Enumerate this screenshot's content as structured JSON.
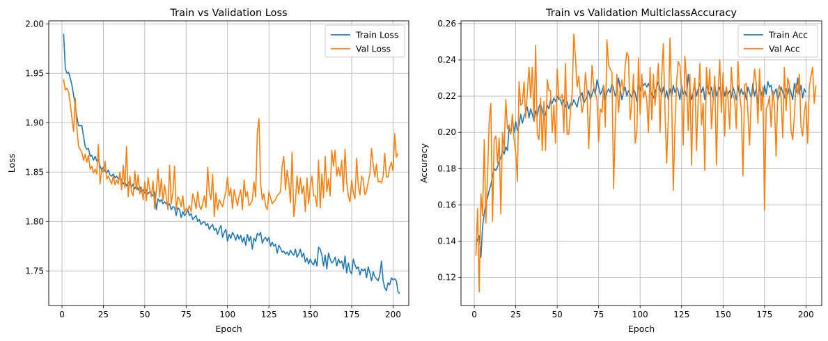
{
  "chart_data": [
    {
      "type": "line",
      "title": "Train vs Validation Loss",
      "xlabel": "Epoch",
      "ylabel": "Loss",
      "xlim": [
        -8,
        209.5
      ],
      "ylim": [
        1.715,
        2.003
      ],
      "xticks": [
        0,
        25,
        50,
        75,
        100,
        125,
        150,
        175,
        200
      ],
      "yticks": [
        1.75,
        1.8,
        1.85,
        1.9,
        1.95,
        2.0
      ],
      "ytick_labels": [
        "1.75",
        "1.80",
        "1.85",
        "1.90",
        "1.95",
        "2.00"
      ],
      "grid": true,
      "legend": "top-right",
      "x": {
        "start": 1,
        "end": 200,
        "step": 1
      },
      "series": [
        {
          "name": "Train Loss",
          "color": "#1f77b4",
          "values": [
            1.99,
            1.955,
            1.95,
            1.951,
            1.945,
            1.938,
            1.928,
            1.918,
            1.906,
            1.897,
            1.897,
            1.897,
            1.886,
            1.876,
            1.873,
            1.874,
            1.866,
            1.867,
            1.862,
            1.866,
            1.861,
            1.863,
            1.856,
            1.852,
            1.855,
            1.851,
            1.849,
            1.852,
            1.847,
            1.846,
            1.848,
            1.844,
            1.846,
            1.843,
            1.845,
            1.842,
            1.838,
            1.84,
            1.836,
            1.84,
            1.838,
            1.835,
            1.838,
            1.833,
            1.836,
            1.832,
            1.835,
            1.83,
            1.832,
            1.829,
            1.832,
            1.828,
            1.83,
            1.828,
            1.826,
            1.83,
            1.812,
            1.823,
            1.82,
            1.822,
            1.818,
            1.82,
            1.818,
            1.816,
            1.818,
            1.812,
            1.815,
            1.814,
            1.806,
            1.814,
            1.812,
            1.804,
            1.81,
            1.806,
            1.808,
            1.812,
            1.806,
            1.808,
            1.802,
            1.804,
            1.806,
            1.8,
            1.802,
            1.797,
            1.799,
            1.8,
            1.796,
            1.798,
            1.792,
            1.795,
            1.797,
            1.791,
            1.793,
            1.787,
            1.792,
            1.796,
            1.784,
            1.789,
            1.792,
            1.78,
            1.787,
            1.783,
            1.789,
            1.786,
            1.781,
            1.787,
            1.782,
            1.786,
            1.779,
            1.784,
            1.776,
            1.787,
            1.78,
            1.785,
            1.772,
            1.783,
            1.78,
            1.788,
            1.786,
            1.789,
            1.778,
            1.782,
            1.784,
            1.78,
            1.784,
            1.775,
            1.779,
            1.775,
            1.777,
            1.768,
            1.776,
            1.773,
            1.769,
            1.77,
            1.767,
            1.769,
            1.766,
            1.771,
            1.768,
            1.766,
            1.772,
            1.764,
            1.767,
            1.772,
            1.764,
            1.768,
            1.759,
            1.763,
            1.757,
            1.762,
            1.758,
            1.756,
            1.762,
            1.755,
            1.774,
            1.772,
            1.766,
            1.755,
            1.766,
            1.752,
            1.768,
            1.762,
            1.758,
            1.76,
            1.764,
            1.755,
            1.762,
            1.758,
            1.76,
            1.752,
            1.765,
            1.748,
            1.758,
            1.75,
            1.747,
            1.762,
            1.756,
            1.752,
            1.754,
            1.746,
            1.752,
            1.75,
            1.752,
            1.743,
            1.754,
            1.748,
            1.74,
            1.749,
            1.744,
            1.742,
            1.74,
            1.746,
            1.76,
            1.74,
            1.733,
            1.73,
            1.738,
            1.736,
            1.743,
            1.741,
            1.742,
            1.74,
            1.729,
            1.727
          ]
        },
        {
          "name": "Val Loss",
          "color": "#ff7f0e",
          "values": [
            1.944,
            1.933,
            1.935,
            1.931,
            1.919,
            1.905,
            1.891,
            1.925,
            1.895,
            1.876,
            1.873,
            1.87,
            1.862,
            1.868,
            1.86,
            1.867,
            1.853,
            1.856,
            1.849,
            1.853,
            1.848,
            1.878,
            1.838,
            1.852,
            1.85,
            1.861,
            1.843,
            1.846,
            1.842,
            1.838,
            1.846,
            1.837,
            1.842,
            1.838,
            1.85,
            1.832,
            1.857,
            1.834,
            1.876,
            1.825,
            1.846,
            1.83,
            1.826,
            1.851,
            1.832,
            1.847,
            1.828,
            1.835,
            1.822,
            1.84,
            1.821,
            1.844,
            1.833,
            1.825,
            1.841,
            1.813,
            1.831,
            1.853,
            1.825,
            1.843,
            1.821,
            1.837,
            1.825,
            1.812,
            1.857,
            1.818,
            1.83,
            1.856,
            1.812,
            1.825,
            1.822,
            1.815,
            1.826,
            1.809,
            1.813,
            1.812,
            1.816,
            1.81,
            1.828,
            1.822,
            1.813,
            1.83,
            1.816,
            1.812,
            1.818,
            1.826,
            1.814,
            1.855,
            1.83,
            1.822,
            1.848,
            1.805,
            1.829,
            1.812,
            1.822,
            1.818,
            1.815,
            1.823,
            1.83,
            1.845,
            1.826,
            1.834,
            1.813,
            1.832,
            1.824,
            1.816,
            1.826,
            1.832,
            1.812,
            1.842,
            1.825,
            1.83,
            1.816,
            1.818,
            1.822,
            1.84,
            1.825,
            1.89,
            1.904,
            1.838,
            1.822,
            1.828,
            1.816,
            1.812,
            1.83,
            1.824,
            1.818,
            1.82,
            1.822,
            1.826,
            1.828,
            1.83,
            1.856,
            1.866,
            1.832,
            1.852,
            1.84,
            1.819,
            1.87,
            1.805,
            1.82,
            1.846,
            1.828,
            1.844,
            1.828,
            1.836,
            1.81,
            1.844,
            1.818,
            1.836,
            1.846,
            1.826,
            1.826,
            1.815,
            1.862,
            1.814,
            1.848,
            1.824,
            1.866,
            1.83,
            1.843,
            1.826,
            1.872,
            1.856,
            1.872,
            1.846,
            1.855,
            1.846,
            1.862,
            1.83,
            1.873,
            1.84,
            1.826,
            1.82,
            1.842,
            1.829,
            1.823,
            1.864,
            1.836,
            1.827,
            1.846,
            1.842,
            1.827,
            1.831,
            1.84,
            1.848,
            1.874,
            1.858,
            1.845,
            1.858,
            1.84,
            1.841,
            1.839,
            1.846,
            1.869,
            1.845,
            1.845,
            1.855,
            1.86,
            1.851,
            1.889,
            1.865,
            1.869
          ]
        }
      ]
    },
    {
      "type": "line",
      "title": "Train vs Validation MulticlassAccuracy",
      "xlabel": "Epoch",
      "ylabel": "Accuracy",
      "xlim": [
        -8,
        209.5
      ],
      "ylim": [
        0.1045,
        0.2615
      ],
      "xticks": [
        0,
        25,
        50,
        75,
        100,
        125,
        150,
        175,
        200
      ],
      "yticks": [
        0.12,
        0.14,
        0.16,
        0.18,
        0.2,
        0.22,
        0.24,
        0.26
      ],
      "ytick_labels": [
        "0.12",
        "0.14",
        "0.16",
        "0.18",
        "0.20",
        "0.22",
        "0.24",
        "0.26"
      ],
      "grid": true,
      "legend": "top-right",
      "x": {
        "start": 1,
        "end": 200,
        "step": 1
      },
      "series": [
        {
          "name": "Train Acc",
          "color": "#1f77b4",
          "values": [
            0.138,
            0.141,
            0.143,
            0.131,
            0.148,
            0.155,
            0.161,
            0.164,
            0.168,
            0.171,
            0.176,
            0.18,
            0.179,
            0.181,
            0.184,
            0.186,
            0.19,
            0.188,
            0.192,
            0.19,
            0.203,
            0.199,
            0.208,
            0.2,
            0.206,
            0.201,
            0.204,
            0.21,
            0.205,
            0.209,
            0.211,
            0.214,
            0.208,
            0.213,
            0.21,
            0.206,
            0.212,
            0.209,
            0.214,
            0.216,
            0.212,
            0.208,
            0.21,
            0.215,
            0.213,
            0.218,
            0.216,
            0.219,
            0.217,
            0.22,
            0.218,
            0.218,
            0.215,
            0.218,
            0.214,
            0.217,
            0.213,
            0.216,
            0.215,
            0.218,
            0.216,
            0.214,
            0.219,
            0.22,
            0.222,
            0.216,
            0.218,
            0.22,
            0.223,
            0.218,
            0.221,
            0.224,
            0.221,
            0.229,
            0.225,
            0.221,
            0.223,
            0.226,
            0.218,
            0.222,
            0.224,
            0.222,
            0.227,
            0.224,
            0.22,
            0.223,
            0.23,
            0.224,
            0.218,
            0.222,
            0.225,
            0.22,
            0.223,
            0.221,
            0.219,
            0.224,
            0.222,
            0.217,
            0.226,
            0.223,
            0.227,
            0.226,
            0.227,
            0.225,
            0.227,
            0.224,
            0.221,
            0.219,
            0.222,
            0.225,
            0.228,
            0.224,
            0.221,
            0.225,
            0.219,
            0.223,
            0.218,
            0.224,
            0.22,
            0.226,
            0.222,
            0.225,
            0.223,
            0.218,
            0.226,
            0.221,
            0.223,
            0.22,
            0.232,
            0.224,
            0.218,
            0.222,
            0.226,
            0.22,
            0.224,
            0.227,
            0.222,
            0.225,
            0.218,
            0.226,
            0.223,
            0.221,
            0.225,
            0.219,
            0.227,
            0.22,
            0.223,
            0.225,
            0.218,
            0.226,
            0.22,
            0.224,
            0.221,
            0.223,
            0.219,
            0.225,
            0.222,
            0.218,
            0.226,
            0.22,
            0.224,
            0.221,
            0.223,
            0.218,
            0.225,
            0.222,
            0.219,
            0.227,
            0.22,
            0.224,
            0.216,
            0.225,
            0.222,
            0.218,
            0.226,
            0.221,
            0.228,
            0.225,
            0.226,
            0.219,
            0.222,
            0.224,
            0.218,
            0.221,
            0.225,
            0.222,
            0.219,
            0.224,
            0.221,
            0.225,
            0.222,
            0.218,
            0.227,
            0.222,
            0.23,
            0.221,
            0.226,
            0.219,
            0.224,
            0.222
          ]
        },
        {
          "name": "Val Acc",
          "color": "#ff7f0e",
          "values": [
            0.132,
            0.158,
            0.112,
            0.166,
            0.154,
            0.196,
            0.15,
            0.176,
            0.207,
            0.216,
            0.151,
            0.196,
            0.198,
            0.183,
            0.197,
            0.155,
            0.2,
            0.19,
            0.218,
            0.202,
            0.204,
            0.199,
            0.21,
            0.196,
            0.189,
            0.173,
            0.228,
            0.215,
            0.216,
            0.228,
            0.208,
            0.222,
            0.236,
            0.219,
            0.236,
            0.206,
            0.248,
            0.199,
            0.196,
            0.219,
            0.19,
            0.217,
            0.19,
            0.229,
            0.223,
            0.223,
            0.2,
            0.215,
            0.194,
            0.235,
            0.219,
            0.219,
            0.221,
            0.2,
            0.238,
            0.199,
            0.199,
            0.212,
            0.221,
            0.254,
            0.242,
            0.225,
            0.231,
            0.22,
            0.211,
            0.216,
            0.233,
            0.223,
            0.191,
            0.216,
            0.237,
            0.226,
            0.222,
            0.218,
            0.195,
            0.213,
            0.211,
            0.226,
            0.203,
            0.251,
            0.237,
            0.235,
            0.233,
            0.169,
            0.204,
            0.232,
            0.211,
            0.224,
            0.229,
            0.221,
            0.237,
            0.244,
            0.242,
            0.207,
            0.217,
            0.232,
            0.194,
            0.2,
            0.241,
            0.21,
            0.232,
            0.219,
            0.223,
            0.218,
            0.2,
            0.236,
            0.207,
            0.232,
            0.215,
            0.226,
            0.238,
            0.2,
            0.231,
            0.249,
            0.212,
            0.183,
            0.208,
            0.252,
            0.219,
            0.168,
            0.203,
            0.228,
            0.239,
            0.237,
            0.222,
            0.193,
            0.242,
            0.229,
            0.201,
            0.232,
            0.182,
            0.222,
            0.23,
            0.19,
            0.218,
            0.238,
            0.204,
            0.216,
            0.179,
            0.236,
            0.221,
            0.235,
            0.202,
            0.217,
            0.231,
            0.182,
            0.222,
            0.24,
            0.211,
            0.233,
            0.198,
            0.225,
            0.219,
            0.202,
            0.236,
            0.221,
            0.218,
            0.202,
            0.239,
            0.221,
            0.213,
            0.176,
            0.226,
            0.227,
            0.21,
            0.193,
            0.22,
            0.222,
            0.235,
            0.227,
            0.205,
            0.235,
            0.212,
            0.225,
            0.157,
            0.213,
            0.215,
            0.22,
            0.203,
            0.223,
            0.215,
            0.187,
            0.223,
            0.226,
            0.219,
            0.197,
            0.236,
            0.212,
            0.23,
            0.226,
            0.201,
            0.196,
            0.209,
            0.227,
            0.221,
            0.232,
            0.203,
            0.198,
            0.211,
            0.217,
            0.194,
            0.225,
            0.231,
            0.236,
            0.216,
            0.226
          ]
        }
      ]
    }
  ]
}
